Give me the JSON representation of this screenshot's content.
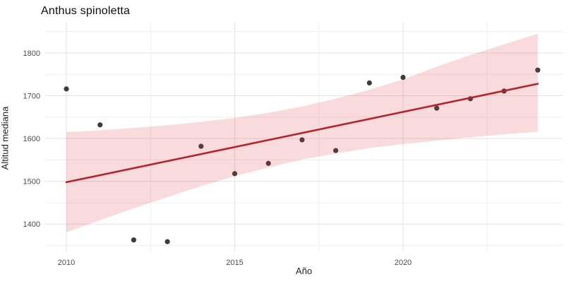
{
  "chart_data": {
    "type": "scatter",
    "title": "Anthus spinoletta",
    "xlabel": "Año",
    "ylabel": "Altitud mediana",
    "x": [
      2010,
      2011,
      2012,
      2013,
      2014,
      2015,
      2016,
      2017,
      2018,
      2019,
      2020,
      2021,
      2022,
      2023,
      2024
    ],
    "y": [
      1716,
      1632,
      1363,
      1359,
      1582,
      1518,
      1542,
      1597,
      1572,
      1730,
      1743,
      1671,
      1693,
      1711,
      1760
    ],
    "trend": {
      "type": "linear",
      "x": [
        2010,
        2024
      ],
      "y": [
        1498,
        1728
      ]
    },
    "ci_band": {
      "x": [
        2010,
        2011,
        2012,
        2013,
        2014,
        2015,
        2016,
        2017,
        2018,
        2019,
        2020,
        2021,
        2022,
        2023,
        2024
      ],
      "lower": [
        1381,
        1409,
        1437,
        1463,
        1489,
        1512,
        1532,
        1551,
        1565,
        1578,
        1587,
        1595,
        1603,
        1610,
        1616
      ],
      "upper": [
        1615,
        1619,
        1625,
        1631,
        1639,
        1648,
        1660,
        1675,
        1693,
        1714,
        1738,
        1768,
        1795,
        1820,
        1845
      ]
    },
    "xlim": [
      2009.37,
      2024.74
    ],
    "ylim": [
      1336,
      1871
    ],
    "x_ticks": [
      2010,
      2015,
      2020
    ],
    "y_ticks": [
      1400,
      1500,
      1600,
      1700,
      1800
    ],
    "x_minor_ticks": [
      2012.5,
      2017.5,
      2022.5
    ],
    "y_minor_ticks": [
      1350,
      1450,
      1550,
      1650,
      1750,
      1850
    ],
    "grid": "on",
    "legend": "none",
    "colors": {
      "background": "#FFFFFF",
      "grid_major": "#E3E3E3",
      "grid_minor": "#EFEFEF",
      "point": "#1A1A1A",
      "point_opacity": 0.85,
      "trend_line": "#B3252C",
      "ci_band_fill": "#DC3440",
      "ci_band_opacity": 0.18,
      "tick_label": "#4D4D4D",
      "axis_title": "#1F1F1F",
      "title": "#0D0D0D"
    }
  }
}
